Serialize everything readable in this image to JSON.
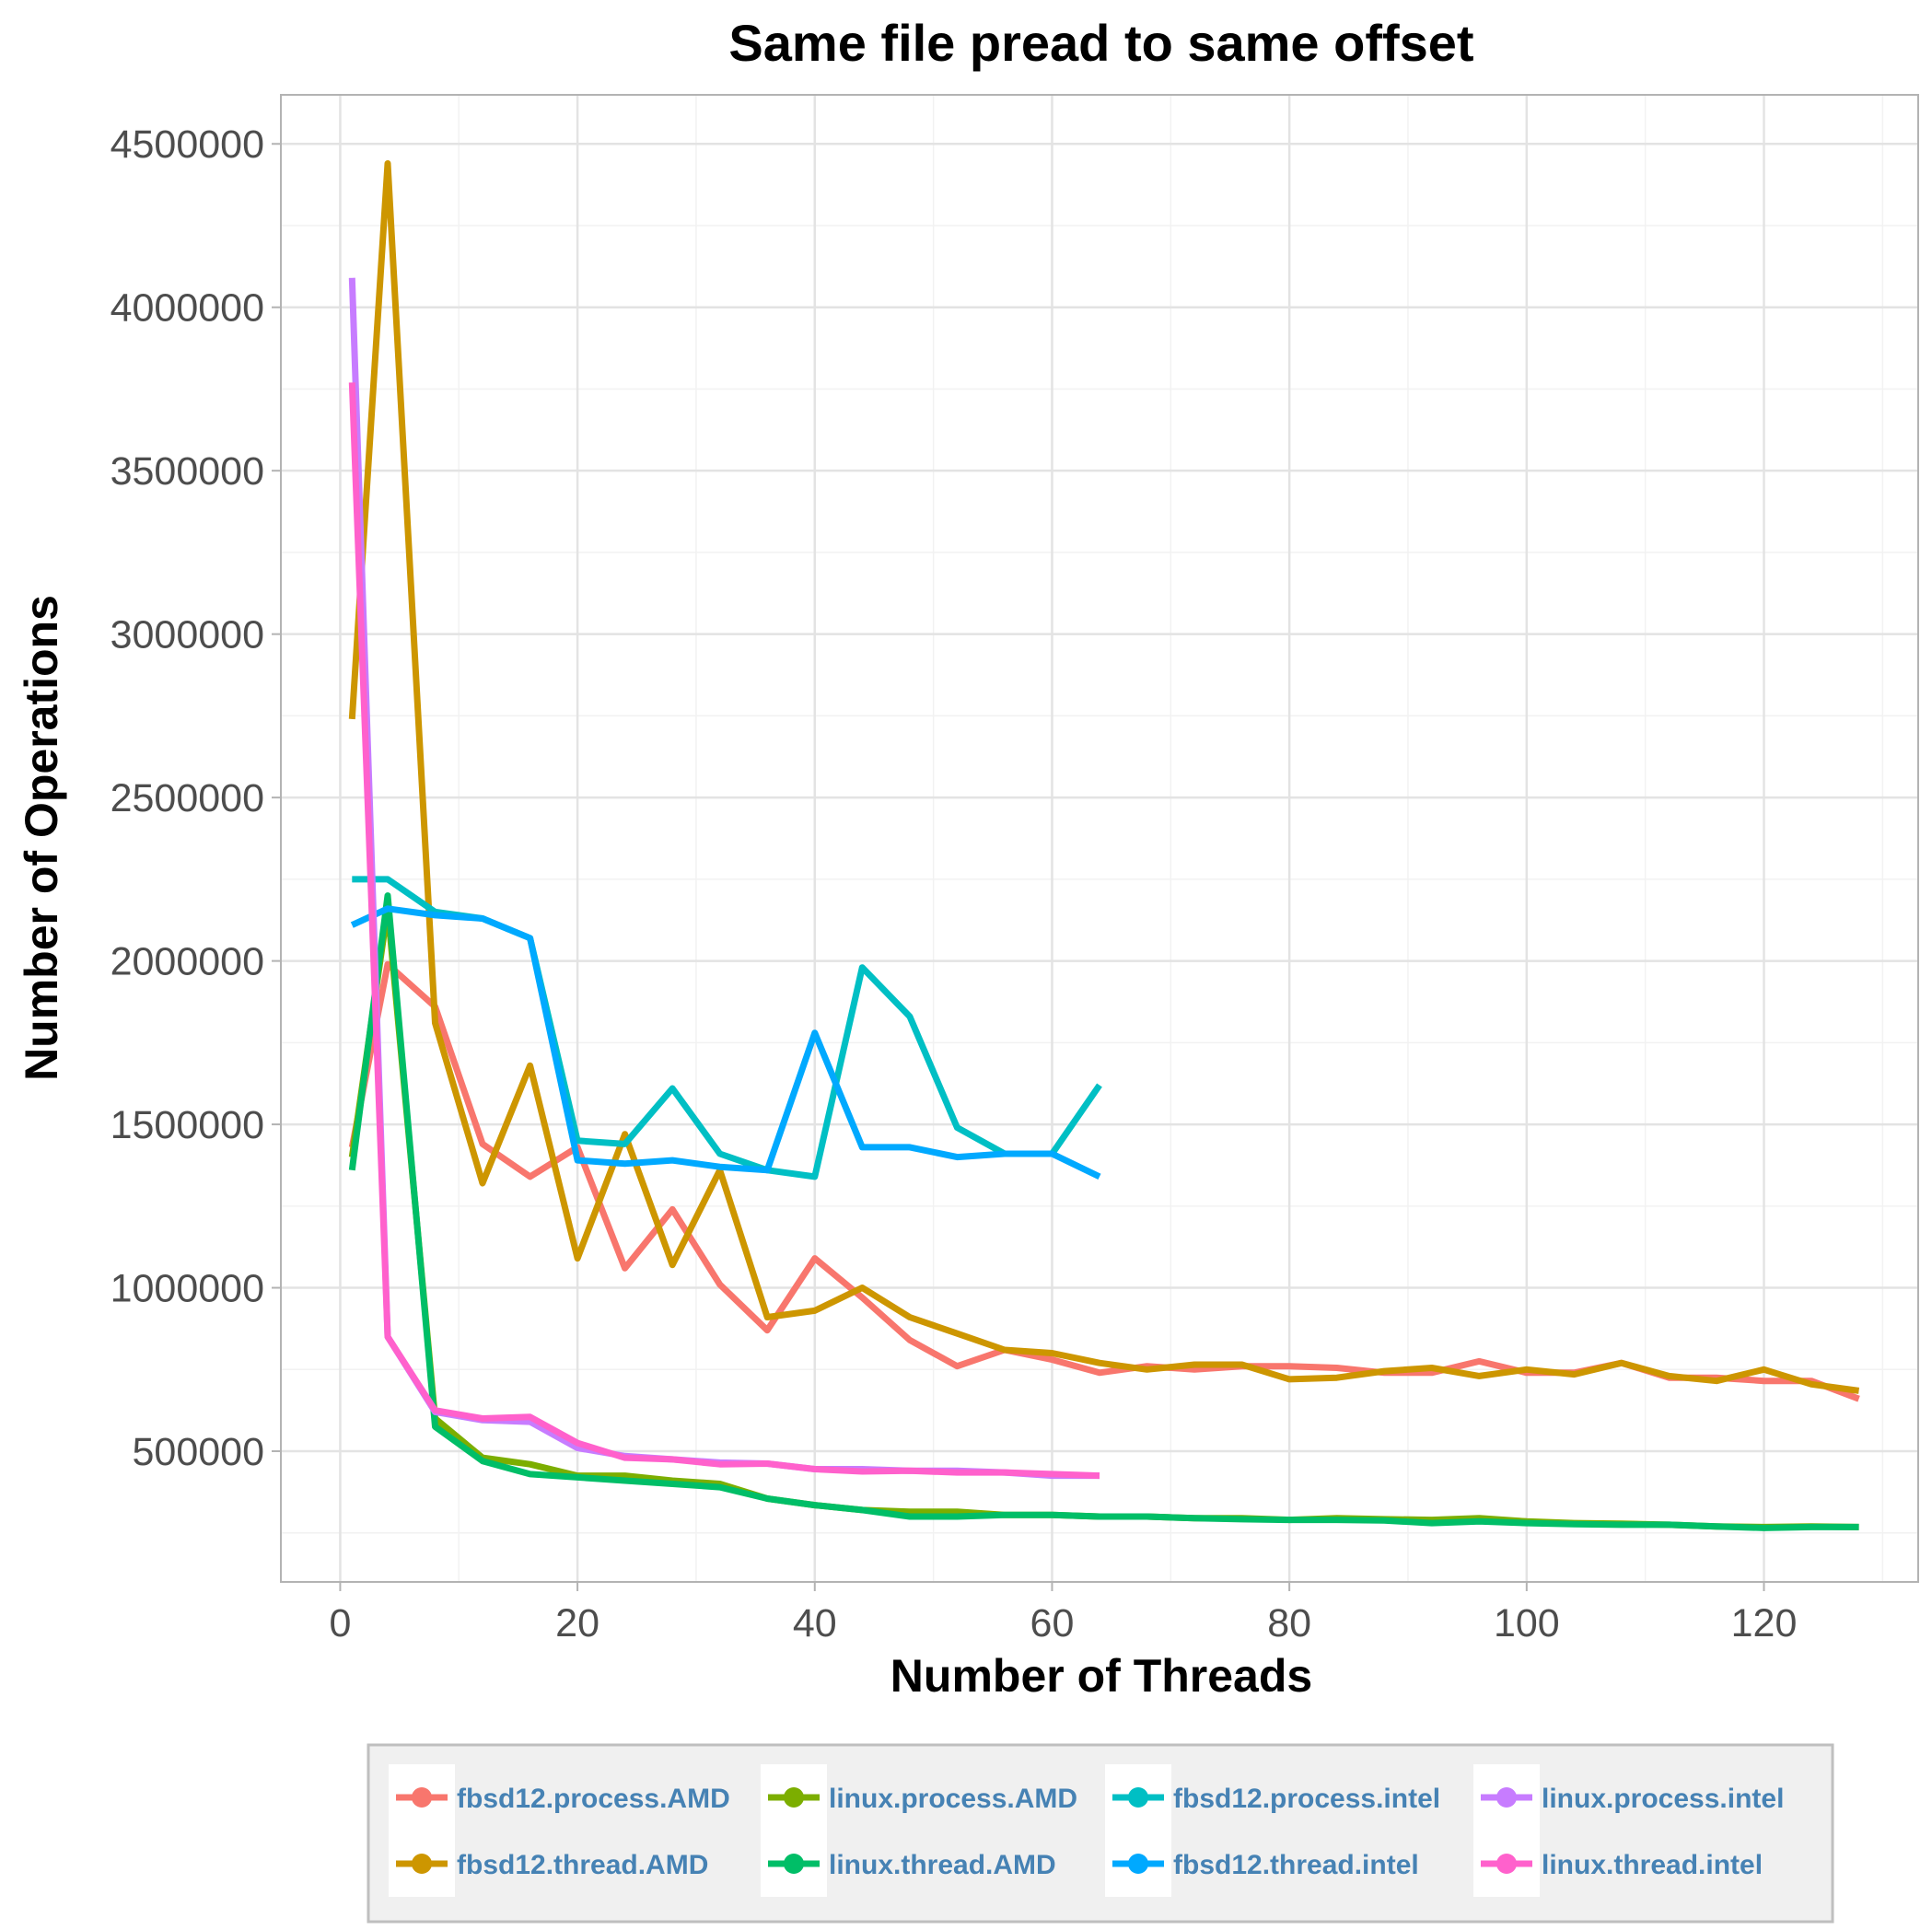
{
  "chart_data": {
    "type": "line",
    "title": "Same file pread to same offset",
    "xlabel": "Number of Threads",
    "ylabel": "Number of Operations",
    "xlim": [
      -5,
      133
    ],
    "ylim": [
      100000,
      4650000
    ],
    "xticks": [
      0,
      20,
      40,
      60,
      80,
      100,
      120
    ],
    "xtick_labels": [
      "0",
      "20",
      "40",
      "60",
      "80",
      "100",
      "120"
    ],
    "yticks": [
      500000,
      1000000,
      1500000,
      2000000,
      2500000,
      3000000,
      3500000,
      4000000,
      4500000
    ],
    "ytick_labels": [
      "500000",
      "1000000",
      "1500000",
      "2000000",
      "2500000",
      "3000000",
      "3500000",
      "4000000",
      "4500000"
    ],
    "grid": true,
    "legend_position": "bottom",
    "series": [
      {
        "name": "fbsd12.process.AMD",
        "color": "#F8766D",
        "x": [
          1,
          4,
          8,
          12,
          16,
          20,
          24,
          28,
          32,
          36,
          40,
          44,
          48,
          52,
          56,
          60,
          64,
          68,
          72,
          76,
          80,
          84,
          88,
          92,
          96,
          100,
          104,
          108,
          112,
          116,
          120,
          124,
          128
        ],
        "y": [
          1430000,
          1990000,
          1860000,
          1440000,
          1340000,
          1430000,
          1060000,
          1240000,
          1010000,
          870000,
          1090000,
          970000,
          840000,
          760000,
          810000,
          780000,
          740000,
          760000,
          750000,
          760000,
          760000,
          755000,
          740000,
          740000,
          775000,
          740000,
          740000,
          770000,
          725000,
          725000,
          715000,
          715000,
          660000
        ]
      },
      {
        "name": "fbsd12.thread.AMD",
        "color": "#CD9600",
        "x": [
          1,
          4,
          8,
          12,
          16,
          20,
          24,
          28,
          32,
          36,
          40,
          44,
          48,
          52,
          56,
          60,
          64,
          68,
          72,
          76,
          80,
          84,
          88,
          92,
          96,
          100,
          104,
          108,
          112,
          116,
          120,
          124,
          128
        ],
        "y": [
          2740000,
          4440000,
          1810000,
          1320000,
          1680000,
          1090000,
          1470000,
          1070000,
          1360000,
          910000,
          930000,
          1000000,
          910000,
          860000,
          810000,
          800000,
          770000,
          750000,
          765000,
          765000,
          720000,
          725000,
          745000,
          755000,
          730000,
          750000,
          735000,
          770000,
          730000,
          715000,
          750000,
          705000,
          685000
        ]
      },
      {
        "name": "linux.process.AMD",
        "color": "#7CAE00",
        "x": [
          1,
          4,
          8,
          12,
          16,
          20,
          24,
          28,
          32,
          36,
          40,
          44,
          48,
          52,
          56,
          60,
          64,
          68,
          72,
          76,
          80,
          84,
          88,
          92,
          96,
          100,
          104,
          108,
          112,
          116,
          120,
          124,
          128
        ],
        "y": [
          1400000,
          2160000,
          600000,
          480000,
          460000,
          425000,
          425000,
          410000,
          400000,
          355000,
          335000,
          320000,
          315000,
          315000,
          305000,
          305000,
          300000,
          300000,
          295000,
          295000,
          290000,
          295000,
          292000,
          290000,
          295000,
          285000,
          280000,
          278000,
          275000,
          270000,
          268000,
          270000,
          268000
        ]
      },
      {
        "name": "linux.thread.AMD",
        "color": "#00BE67",
        "x": [
          1,
          4,
          8,
          12,
          16,
          20,
          24,
          28,
          32,
          36,
          40,
          44,
          48,
          52,
          56,
          60,
          64,
          68,
          72,
          76,
          80,
          84,
          88,
          92,
          96,
          100,
          104,
          108,
          112,
          116,
          120,
          124,
          128
        ],
        "y": [
          1360000,
          2200000,
          575000,
          470000,
          430000,
          420000,
          410000,
          400000,
          390000,
          355000,
          335000,
          320000,
          300000,
          300000,
          305000,
          305000,
          300000,
          300000,
          295000,
          292000,
          290000,
          290000,
          288000,
          280000,
          285000,
          280000,
          277000,
          275000,
          275000,
          270000,
          265000,
          268000,
          268000
        ]
      },
      {
        "name": "fbsd12.process.intel",
        "color": "#00BFC4",
        "x": [
          1,
          4,
          8,
          12,
          16,
          20,
          24,
          28,
          32,
          36,
          40,
          44,
          48,
          52,
          56,
          60,
          64
        ],
        "y": [
          2250000,
          2250000,
          2150000,
          2130000,
          2070000,
          1450000,
          1440000,
          1610000,
          1410000,
          1360000,
          1340000,
          1980000,
          1830000,
          1490000,
          1410000,
          1410000,
          1620000
        ]
      },
      {
        "name": "fbsd12.thread.intel",
        "color": "#00A9FF",
        "x": [
          1,
          4,
          8,
          12,
          16,
          20,
          24,
          28,
          32,
          36,
          40,
          44,
          48,
          52,
          56,
          60,
          64
        ],
        "y": [
          2110000,
          2160000,
          2140000,
          2130000,
          2070000,
          1390000,
          1380000,
          1390000,
          1370000,
          1360000,
          1780000,
          1430000,
          1430000,
          1400000,
          1410000,
          1410000,
          1340000
        ]
      },
      {
        "name": "linux.process.intel",
        "color": "#C77CFF",
        "x": [
          1,
          4,
          8,
          12,
          16,
          20,
          24,
          28,
          32,
          36,
          40,
          44,
          48,
          52,
          56,
          60,
          64
        ],
        "y": [
          4090000,
          850000,
          620000,
          595000,
          590000,
          510000,
          485000,
          475000,
          465000,
          462000,
          445000,
          445000,
          440000,
          440000,
          435000,
          425000,
          425000
        ]
      },
      {
        "name": "linux.thread.intel",
        "color": "#FF61CC",
        "x": [
          1,
          4,
          8,
          12,
          16,
          20,
          24,
          28,
          32,
          36,
          40,
          44,
          48,
          52,
          56,
          60,
          64
        ],
        "y": [
          3770000,
          850000,
          625000,
          600000,
          605000,
          525000,
          480000,
          475000,
          460000,
          462000,
          445000,
          438000,
          440000,
          435000,
          435000,
          430000,
          425000
        ]
      }
    ]
  }
}
